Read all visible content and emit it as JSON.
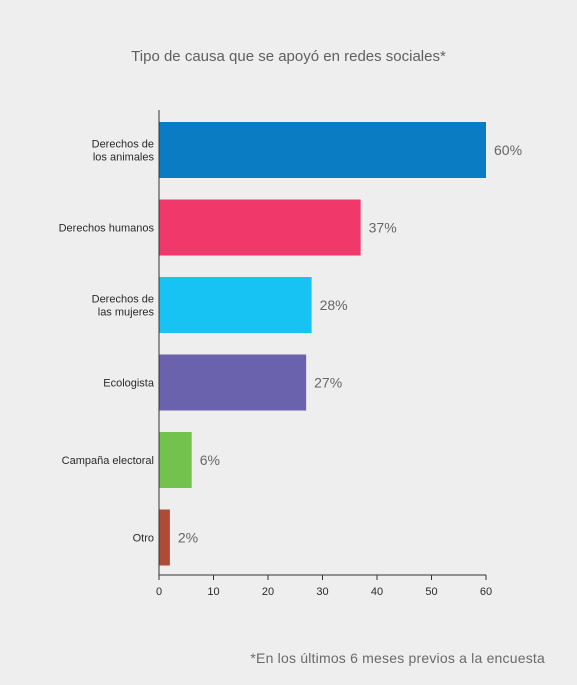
{
  "chart_data": {
    "type": "bar",
    "orientation": "horizontal",
    "title": "Tipo de causa que se apoyó en redes sociales*",
    "footnote": "*En los últimos 6 meses previos a la encuesta",
    "categories": [
      [
        "Derechos de",
        "los animales"
      ],
      [
        "Derechos humanos"
      ],
      [
        "Derechos de",
        "las mujeres"
      ],
      [
        "Ecologista"
      ],
      [
        "Campaña electoral"
      ],
      [
        "Otro"
      ]
    ],
    "values": [
      60,
      37,
      28,
      27,
      6,
      2
    ],
    "value_labels": [
      "60%",
      "37%",
      "28%",
      "27%",
      "6%",
      "2%"
    ],
    "colors": [
      "#0a7cc4",
      "#f0386a",
      "#16c3f2",
      "#6a62ac",
      "#74c24e",
      "#ad4b37"
    ],
    "xlim": [
      0,
      60
    ],
    "xticks": [
      0,
      10,
      20,
      30,
      40,
      50,
      60
    ],
    "grid": false,
    "legend": "none"
  }
}
